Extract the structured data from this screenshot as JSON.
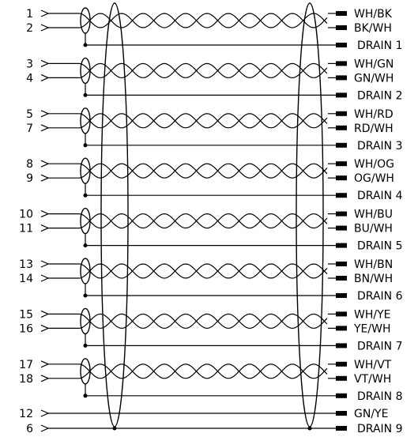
{
  "pairs": [
    {
      "pins": [
        "1",
        "2"
      ],
      "colors": [
        "WH/BK",
        "BK/WH"
      ],
      "drain": "DRAIN  1"
    },
    {
      "pins": [
        "3",
        "4"
      ],
      "colors": [
        "WH/GN",
        "GN/WH"
      ],
      "drain": "DRAIN  2"
    },
    {
      "pins": [
        "5",
        "7"
      ],
      "colors": [
        "WH/RD",
        "RD/WH"
      ],
      "drain": "DRAIN  3"
    },
    {
      "pins": [
        "8",
        "9"
      ],
      "colors": [
        "WH/OG",
        "OG/WH"
      ],
      "drain": "DRAIN  4"
    },
    {
      "pins": [
        "10",
        "11"
      ],
      "colors": [
        "WH/BU",
        "BU/WH"
      ],
      "drain": "DRAIN  5"
    },
    {
      "pins": [
        "13",
        "14"
      ],
      "colors": [
        "WH/BN",
        "BN/WH"
      ],
      "drain": "DRAIN  6"
    },
    {
      "pins": [
        "15",
        "16"
      ],
      "colors": [
        "WH/YE",
        "YE/WH"
      ],
      "drain": "DRAIN  7"
    },
    {
      "pins": [
        "17",
        "18"
      ],
      "colors": [
        "WH/VT",
        "VT/WH"
      ],
      "drain": "DRAIN  8"
    }
  ],
  "singles": [
    {
      "pin": "12",
      "label": "GN/YE"
    },
    {
      "pin": "6",
      "label": "DRAIN  9"
    }
  ]
}
